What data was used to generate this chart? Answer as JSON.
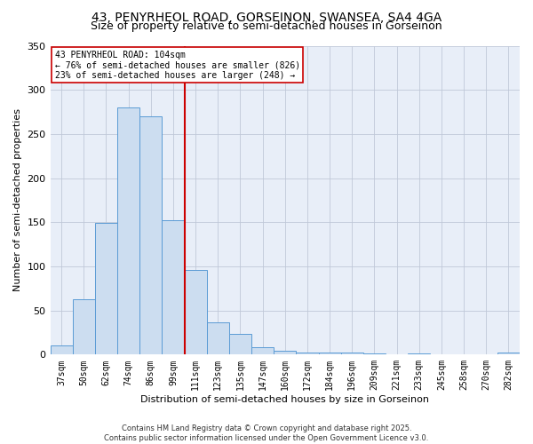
{
  "title_line1": "43, PENYRHEOL ROAD, GORSEINON, SWANSEA, SA4 4GA",
  "title_line2": "Size of property relative to semi-detached houses in Gorseinon",
  "xlabel": "Distribution of semi-detached houses by size in Gorseinon",
  "ylabel": "Number of semi-detached properties",
  "categories": [
    "37sqm",
    "50sqm",
    "62sqm",
    "74sqm",
    "86sqm",
    "99sqm",
    "111sqm",
    "123sqm",
    "135sqm",
    "147sqm",
    "160sqm",
    "172sqm",
    "184sqm",
    "196sqm",
    "209sqm",
    "221sqm",
    "233sqm",
    "245sqm",
    "258sqm",
    "270sqm",
    "282sqm"
  ],
  "values": [
    10,
    63,
    149,
    280,
    270,
    152,
    96,
    37,
    23,
    8,
    4,
    2,
    2,
    2,
    1,
    0,
    1,
    0,
    0,
    0,
    2
  ],
  "bar_color": "#ccddf0",
  "bar_edge_color": "#5b9bd5",
  "vline_x": 5.5,
  "vline_color": "#cc0000",
  "annotation_text": "43 PENYRHEOL ROAD: 104sqm\n← 76% of semi-detached houses are smaller (826)\n23% of semi-detached houses are larger (248) →",
  "annotation_box_color": "#ffffff",
  "annotation_box_edge": "#cc0000",
  "ylim": [
    0,
    350
  ],
  "footer_line1": "Contains HM Land Registry data © Crown copyright and database right 2025.",
  "footer_line2": "Contains public sector information licensed under the Open Government Licence v3.0.",
  "bg_color": "#e8eef8",
  "grid_color": "#c0c8d8",
  "title_fontsize": 10,
  "subtitle_fontsize": 9,
  "tick_fontsize": 7,
  "ylabel_fontsize": 8,
  "xlabel_fontsize": 8,
  "footer_fontsize": 6,
  "annot_fontsize": 7
}
